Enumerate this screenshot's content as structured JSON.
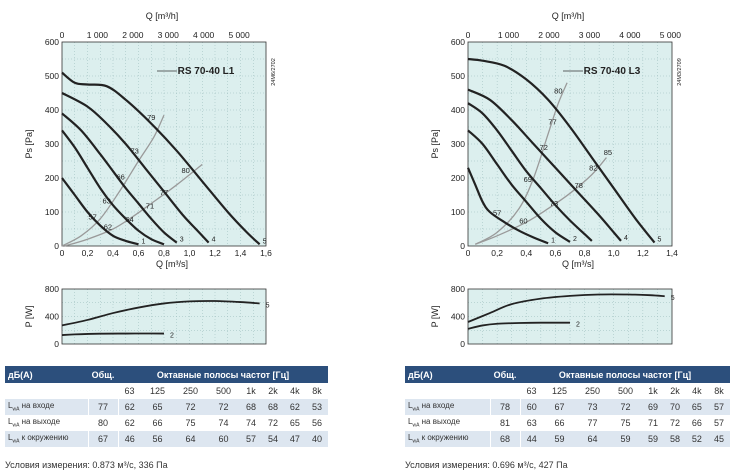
{
  "chart_data": [
    {
      "type": "line",
      "model_label": "RS 70-40 L1",
      "doc_code": "24M6/2702",
      "top_axis": {
        "label": "Q [m³/h]",
        "ticks": [
          "0",
          "1 000",
          "2 000",
          "3 000",
          "4 000",
          "5 000"
        ]
      },
      "xlabel": "Q [m³/s]",
      "ylabel": "Ps [Pa]",
      "xlim": [
        0,
        1.6
      ],
      "ylim": [
        0,
        600
      ],
      "x_ticks": [
        "0",
        "0,2",
        "0,4",
        "0,6",
        "0,8",
        "1,0",
        "1,2",
        "1,4",
        "1,6"
      ],
      "y_ticks": [
        "0",
        "100",
        "200",
        "300",
        "400",
        "500",
        "600"
      ],
      "series": [
        {
          "name": "",
          "end_label": "1",
          "points": [
            [
              0,
              200
            ],
            [
              0.1,
              150
            ],
            [
              0.2,
              100
            ],
            [
              0.3,
              60
            ],
            [
              0.4,
              30
            ],
            [
              0.5,
              15
            ],
            [
              0.6,
              5
            ]
          ]
        },
        {
          "name": "",
          "end_label": "",
          "points": [
            [
              0,
              340
            ],
            [
              0.1,
              290
            ],
            [
              0.2,
              230
            ],
            [
              0.3,
              170
            ],
            [
              0.4,
              120
            ],
            [
              0.5,
              80
            ],
            [
              0.6,
              45
            ],
            [
              0.7,
              20
            ],
            [
              0.8,
              5
            ]
          ]
        },
        {
          "name": "",
          "end_label": "3",
          "points": [
            [
              0,
              390
            ],
            [
              0.15,
              340
            ],
            [
              0.3,
              270
            ],
            [
              0.4,
              220
            ],
            [
              0.5,
              170
            ],
            [
              0.6,
              125
            ],
            [
              0.7,
              80
            ],
            [
              0.8,
              40
            ],
            [
              0.9,
              10
            ]
          ]
        },
        {
          "name": "",
          "end_label": "4",
          "points": [
            [
              0,
              450
            ],
            [
              0.2,
              410
            ],
            [
              0.35,
              360
            ],
            [
              0.5,
              300
            ],
            [
              0.65,
              230
            ],
            [
              0.8,
              160
            ],
            [
              0.95,
              90
            ],
            [
              1.05,
              50
            ],
            [
              1.15,
              10
            ]
          ]
        },
        {
          "name": "",
          "end_label": "5",
          "points": [
            [
              0,
              510
            ],
            [
              0.1,
              480
            ],
            [
              0.2,
              475
            ],
            [
              0.35,
              470
            ],
            [
              0.5,
              430
            ],
            [
              0.7,
              360
            ],
            [
              0.9,
              280
            ],
            [
              1.1,
              190
            ],
            [
              1.3,
              100
            ],
            [
              1.45,
              40
            ],
            [
              1.55,
              5
            ]
          ]
        }
      ],
      "efficiency_curves": [
        {
          "label_pos": [
            0.86,
            70
          ],
          "points": [
            [
              0.02,
              0
            ],
            [
              0.2,
              20
            ],
            [
              0.4,
              50
            ],
            [
              0.55,
              85
            ],
            [
              0.7,
              125
            ],
            [
              0.9,
              180
            ],
            [
              1.1,
              240
            ]
          ]
        },
        {
          "label_pos": [
            0.59,
            270
          ],
          "points": [
            [
              0.0,
              0
            ],
            [
              0.15,
              30
            ],
            [
              0.3,
              80
            ],
            [
              0.45,
              160
            ],
            [
              0.6,
              250
            ],
            [
              0.72,
              320
            ],
            [
              0.8,
              385
            ]
          ]
        }
      ],
      "efficiency_labels": [
        {
          "text": "57",
          "x": 0.24,
          "y": 78
        },
        {
          "text": "62",
          "x": 0.36,
          "y": 48
        },
        {
          "text": "63",
          "x": 0.35,
          "y": 125
        },
        {
          "text": "64",
          "x": 0.53,
          "y": 70
        },
        {
          "text": "66",
          "x": 0.46,
          "y": 195
        },
        {
          "text": "71",
          "x": 0.69,
          "y": 110
        },
        {
          "text": "73",
          "x": 0.57,
          "y": 272
        },
        {
          "text": "77",
          "x": 0.8,
          "y": 150
        },
        {
          "text": "79",
          "x": 0.7,
          "y": 370
        },
        {
          "text": "80",
          "x": 0.97,
          "y": 215
        }
      ]
    },
    {
      "type": "line",
      "model_label": "RS 70-40 L3",
      "doc_code": "24M3/2709",
      "top_axis": {
        "label": "Q [m³/h]",
        "ticks": [
          "0",
          "1 000",
          "2 000",
          "3 000",
          "4 000",
          "5 000"
        ]
      },
      "xlabel": "Q [m³/s]",
      "ylabel": "Ps [Pa]",
      "xlim": [
        0,
        1.4
      ],
      "ylim": [
        0,
        600
      ],
      "x_ticks": [
        "0",
        "0,2",
        "0,4",
        "0,6",
        "0,8",
        "1,0",
        "1,2",
        "1,4"
      ],
      "y_ticks": [
        "0",
        "100",
        "200",
        "300",
        "400",
        "500",
        "600"
      ],
      "series": [
        {
          "name": "",
          "end_label": "1",
          "points": [
            [
              0,
              230
            ],
            [
              0.05,
              180
            ],
            [
              0.1,
              130
            ],
            [
              0.15,
              100
            ],
            [
              0.25,
              70
            ],
            [
              0.35,
              45
            ],
            [
              0.45,
              25
            ],
            [
              0.55,
              8
            ]
          ]
        },
        {
          "name": "",
          "end_label": "2",
          "points": [
            [
              0,
              340
            ],
            [
              0.1,
              300
            ],
            [
              0.2,
              240
            ],
            [
              0.3,
              180
            ],
            [
              0.4,
              130
            ],
            [
              0.5,
              80
            ],
            [
              0.6,
              40
            ],
            [
              0.7,
              12
            ]
          ]
        },
        {
          "name": "",
          "end_label": "",
          "points": [
            [
              0,
              420
            ],
            [
              0.1,
              390
            ],
            [
              0.2,
              340
            ],
            [
              0.3,
              280
            ],
            [
              0.4,
              220
            ],
            [
              0.5,
              170
            ],
            [
              0.6,
              120
            ],
            [
              0.7,
              75
            ],
            [
              0.8,
              35
            ],
            [
              0.85,
              15
            ]
          ]
        },
        {
          "name": "",
          "end_label": "4",
          "points": [
            [
              0,
              460
            ],
            [
              0.15,
              430
            ],
            [
              0.3,
              370
            ],
            [
              0.45,
              300
            ],
            [
              0.6,
              230
            ],
            [
              0.75,
              160
            ],
            [
              0.9,
              90
            ],
            [
              1.0,
              40
            ],
            [
              1.05,
              15
            ]
          ]
        },
        {
          "name": "",
          "end_label": "5",
          "points": [
            [
              0,
              550
            ],
            [
              0.1,
              545
            ],
            [
              0.25,
              530
            ],
            [
              0.4,
              490
            ],
            [
              0.55,
              430
            ],
            [
              0.7,
              350
            ],
            [
              0.85,
              260
            ],
            [
              1.0,
              170
            ],
            [
              1.15,
              80
            ],
            [
              1.28,
              10
            ]
          ]
        }
      ],
      "efficiency_curves": [
        {
          "label_pos": [
            0.9,
            220
          ],
          "points": [
            [
              0.05,
              5
            ],
            [
              0.2,
              30
            ],
            [
              0.4,
              70
            ],
            [
              0.55,
              110
            ],
            [
              0.7,
              155
            ],
            [
              0.85,
              210
            ],
            [
              0.95,
              260
            ]
          ]
        },
        {
          "label_pos": [
            0.62,
            450
          ],
          "points": [
            [
              0.05,
              5
            ],
            [
              0.2,
              40
            ],
            [
              0.35,
              110
            ],
            [
              0.45,
              200
            ],
            [
              0.55,
              330
            ],
            [
              0.62,
              420
            ],
            [
              0.68,
              480
            ]
          ]
        }
      ],
      "efficiency_labels": [
        {
          "text": "57",
          "x": 0.2,
          "y": 90
        },
        {
          "text": "60",
          "x": 0.38,
          "y": 66
        },
        {
          "text": "69",
          "x": 0.41,
          "y": 188
        },
        {
          "text": "72",
          "x": 0.52,
          "y": 282
        },
        {
          "text": "73",
          "x": 0.59,
          "y": 118
        },
        {
          "text": "77",
          "x": 0.58,
          "y": 357
        },
        {
          "text": "78",
          "x": 0.76,
          "y": 170
        },
        {
          "text": "80",
          "x": 0.62,
          "y": 448
        },
        {
          "text": "82",
          "x": 0.86,
          "y": 222
        },
        {
          "text": "85",
          "x": 0.96,
          "y": 268
        }
      ]
    },
    {
      "type": "line",
      "ylabel": "P [W]",
      "xlim": [
        0,
        1.6
      ],
      "ylim": [
        0,
        800
      ],
      "y_ticks": [
        "0",
        "400",
        "800"
      ],
      "series": [
        {
          "name": "",
          "end_label": "2",
          "points": [
            [
              0,
              130
            ],
            [
              0.1,
              140
            ],
            [
              0.3,
              150
            ],
            [
              0.5,
              152
            ],
            [
              0.7,
              153
            ],
            [
              0.8,
              152
            ]
          ]
        },
        {
          "name": "",
          "end_label": "5",
          "points": [
            [
              0,
              270
            ],
            [
              0.2,
              350
            ],
            [
              0.4,
              450
            ],
            [
              0.6,
              530
            ],
            [
              0.8,
              590
            ],
            [
              1.0,
              620
            ],
            [
              1.2,
              625
            ],
            [
              1.4,
              610
            ],
            [
              1.55,
              590
            ]
          ]
        }
      ]
    },
    {
      "type": "line",
      "ylabel": "P [W]",
      "xlim": [
        0,
        1.4
      ],
      "ylim": [
        0,
        800
      ],
      "y_ticks": [
        "0",
        "400",
        "800"
      ],
      "series": [
        {
          "name": "",
          "end_label": "2",
          "points": [
            [
              0,
              220
            ],
            [
              0.1,
              270
            ],
            [
              0.2,
              295
            ],
            [
              0.35,
              305
            ],
            [
              0.5,
              310
            ],
            [
              0.7,
              310
            ]
          ]
        },
        {
          "name": "",
          "end_label": "5",
          "points": [
            [
              0,
              320
            ],
            [
              0.15,
              450
            ],
            [
              0.3,
              580
            ],
            [
              0.5,
              660
            ],
            [
              0.7,
              700
            ],
            [
              0.9,
              720
            ],
            [
              1.1,
              720
            ],
            [
              1.25,
              710
            ],
            [
              1.35,
              695
            ]
          ]
        }
      ]
    }
  ],
  "tables": [
    {
      "header_label": "дБ(А)",
      "header_total": "Общ.",
      "header_bands": "Октавные полосы частот [Гц]",
      "bands": [
        "63",
        "125",
        "250",
        "500",
        "1k",
        "2k",
        "4k",
        "8k"
      ],
      "rows": [
        {
          "label": "LwA на входе",
          "total": "77",
          "values": [
            "62",
            "65",
            "72",
            "72",
            "68",
            "68",
            "62",
            "53"
          ]
        },
        {
          "label": "LwA на выходе",
          "total": "80",
          "values": [
            "62",
            "66",
            "75",
            "74",
            "74",
            "72",
            "65",
            "56"
          ]
        },
        {
          "label": "LwA к окружению",
          "total": "67",
          "values": [
            "46",
            "56",
            "64",
            "60",
            "57",
            "54",
            "47",
            "40"
          ]
        }
      ],
      "condition": "Условия измерения: 0.873 м³/с, 336 Па"
    },
    {
      "header_label": "дБ(А)",
      "header_total": "Общ.",
      "header_bands": "Октавные полосы частот [Гц]",
      "bands": [
        "63",
        "125",
        "250",
        "500",
        "1k",
        "2k",
        "4k",
        "8k"
      ],
      "rows": [
        {
          "label": "LwA на входе",
          "total": "78",
          "values": [
            "60",
            "67",
            "73",
            "72",
            "69",
            "70",
            "65",
            "57"
          ]
        },
        {
          "label": "LwA на выходе",
          "total": "81",
          "values": [
            "63",
            "66",
            "77",
            "75",
            "71",
            "72",
            "66",
            "57"
          ]
        },
        {
          "label": "LwA к окружению",
          "total": "68",
          "values": [
            "44",
            "59",
            "64",
            "59",
            "59",
            "58",
            "52",
            "45"
          ]
        }
      ],
      "condition": "Условия измерения: 0.696 м³/с, 427 Па"
    }
  ],
  "colors": {
    "plot_bg": "#dcefee",
    "curve": "#222222",
    "eff": "#9a9a9a",
    "header": "#2c4f7c",
    "row_alt": "#dde6f0"
  }
}
